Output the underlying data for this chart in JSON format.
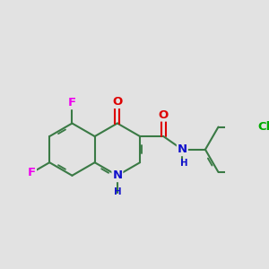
{
  "bg": "#e2e2e2",
  "bc": "#3a7a45",
  "bw": 1.5,
  "dbo": 0.028,
  "colors": {
    "F": "#ee00ee",
    "O": "#dd0000",
    "N": "#1111cc",
    "Cl": "#00aa00",
    "C": "#3a7a45"
  },
  "fs": 9.5,
  "BL": 0.35
}
